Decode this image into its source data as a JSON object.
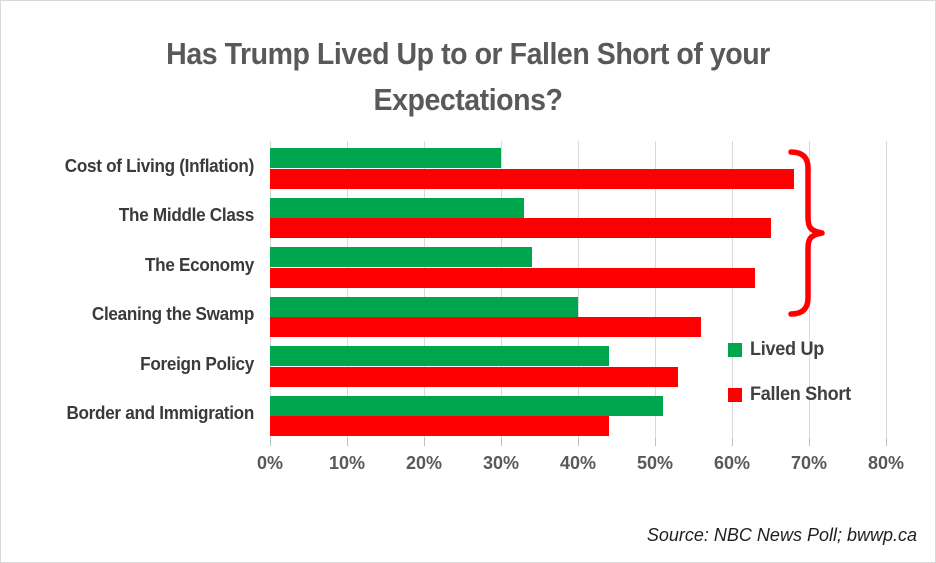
{
  "title_lines": [
    "Has Trump Lived Up to or Fallen Short of your",
    "Expectations?"
  ],
  "chart_data": {
    "type": "bar",
    "orientation": "horizontal",
    "title": "Has Trump Lived Up to or Fallen Short of your Expectations?",
    "categories": [
      "Cost of Living (Inflation)",
      "The Middle Class",
      "The Economy",
      "Cleaning the Swamp",
      "Foreign Policy",
      "Border and Immigration"
    ],
    "series": [
      {
        "name": "Lived Up",
        "color": "#00A64E",
        "values": [
          30,
          33,
          34,
          40,
          44,
          51
        ]
      },
      {
        "name": "Fallen Short",
        "color": "#FF0000",
        "values": [
          68,
          65,
          63,
          56,
          53,
          44
        ]
      }
    ],
    "xlabel": "",
    "ylabel": "",
    "xlim": [
      0,
      80
    ],
    "x_ticks": [
      "0%",
      "10%",
      "20%",
      "30%",
      "40%",
      "50%",
      "60%",
      "70%",
      "80%"
    ],
    "grid": "vertical-only",
    "legend_position": "inside-right-middle",
    "annotation": {
      "type": "curly-brace",
      "color": "#FF0000",
      "spans_categories": [
        "Cost of Living (Inflation)",
        "The Middle Class",
        "The Economy"
      ]
    }
  },
  "source": "Source: NBC News Poll; bwwp.ca",
  "colors": {
    "background": "#FFFFFF",
    "border": "#D9D9D9",
    "grid": "#D9D9D9",
    "tick": "#BFBFBF",
    "title_text": "#595959",
    "axis_text": "#595959",
    "category_text": "#3A3A3A",
    "green": "#00A64E",
    "red": "#FF0000"
  }
}
